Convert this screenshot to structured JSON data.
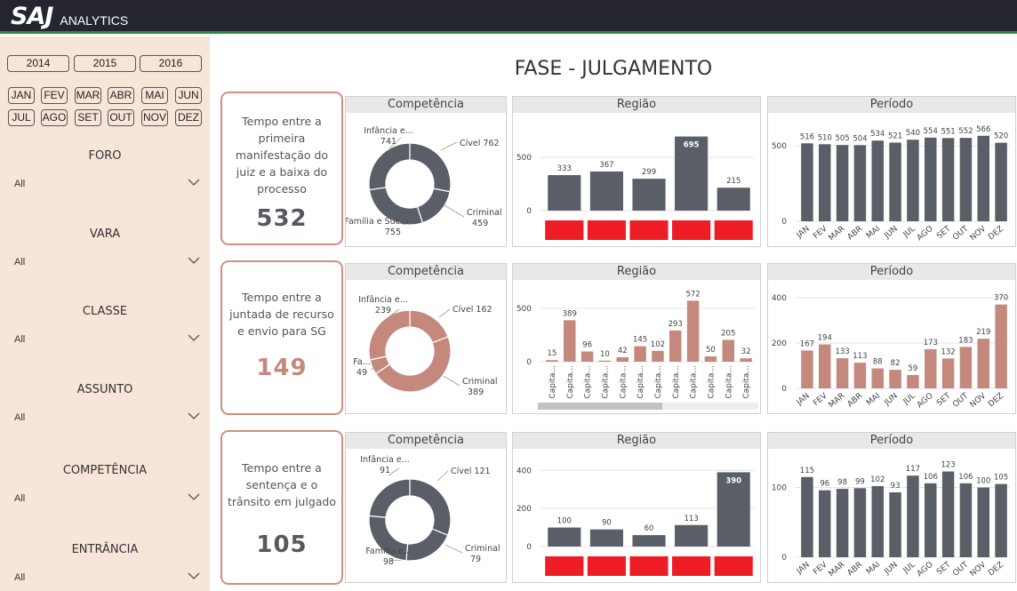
{
  "brand": {
    "logo": "SAJ",
    "subtitle": "ANALYTICS"
  },
  "sidebar": {
    "years": [
      "2014",
      "2015",
      "2016"
    ],
    "months": [
      "JAN",
      "FEV",
      "MAR",
      "ABR",
      "MAI",
      "JUN",
      "JUL",
      "AGO",
      "SET",
      "OUT",
      "NOV",
      "DEZ"
    ],
    "filters": [
      {
        "label": "FORO",
        "value": "All"
      },
      {
        "label": "VARA",
        "value": "All"
      },
      {
        "label": "CLASSE",
        "value": "All"
      },
      {
        "label": "ASSUNTO",
        "value": "All"
      },
      {
        "label": "COMPETÊNCIA",
        "value": "All"
      },
      {
        "label": "ENTRÂNCIA",
        "value": "All"
      }
    ]
  },
  "title": "FASE - JULGAMENTO",
  "rows": [
    {
      "kpi_text": "Tempo entre a primeira manifestação do juiz e a baixa do processo",
      "kpi_value": "532",
      "kpi_color": "#555a60",
      "color": "#5a5e66"
    },
    {
      "kpi_text": "Tempo entre a juntada de recurso e envio para SG",
      "kpi_value": "149",
      "kpi_color": "#c4897c",
      "color": "#c4897c"
    },
    {
      "kpi_text": "Tempo entre a sentença e o trânsito em julgado",
      "kpi_value": "105",
      "kpi_color": "#555a60",
      "color": "#5a5e66"
    }
  ],
  "panel_titles": {
    "competencia": "Competência",
    "regiao": "Região",
    "periodo": "Período"
  },
  "chart_data": [
    {
      "id": "comp-1",
      "type": "pie",
      "title": "Competência",
      "donut": true,
      "slices": [
        {
          "label": "Cível 762",
          "value": 762
        },
        {
          "label": "Criminal 459",
          "value": 459
        },
        {
          "label": "Família e Suc... 755",
          "value": 755
        },
        {
          "label": "Infância e... 741",
          "value": 741
        }
      ]
    },
    {
      "id": "reg-1",
      "type": "bar",
      "title": "Região",
      "values": [
        333,
        367,
        299,
        695,
        215
      ],
      "ylim": [
        0,
        750
      ],
      "yticks": [
        0,
        500
      ],
      "value_labels": [
        "333",
        "367",
        "299",
        "695",
        "215"
      ],
      "category_labels": [],
      "highlight_last_max": true,
      "red_blocks": true
    },
    {
      "id": "per-1",
      "type": "bar",
      "title": "Período",
      "categories": [
        "JAN",
        "FEV",
        "MAR",
        "ABR",
        "MAI",
        "JUN",
        "JUL",
        "AGO",
        "SET",
        "OUT",
        "NOV",
        "DEZ"
      ],
      "values": [
        516,
        510,
        505,
        504,
        534,
        521,
        540,
        554,
        551,
        552,
        566,
        520
      ],
      "ylim": [
        0,
        600
      ],
      "yticks": [
        0,
        500
      ],
      "value_labels": [
        "516",
        "510",
        "505",
        "504",
        "534",
        "521",
        "540",
        "554",
        "551",
        "552",
        "566",
        "520"
      ]
    },
    {
      "id": "comp-2",
      "type": "pie",
      "title": "Competência",
      "donut": true,
      "slices": [
        {
          "label": "Cível 162",
          "value": 162
        },
        {
          "label": "Criminal 389",
          "value": 389
        },
        {
          "label": "Fa... 49",
          "value": 49
        },
        {
          "label": "Infância e... 239",
          "value": 239
        }
      ]
    },
    {
      "id": "reg-2",
      "type": "bar",
      "title": "Região",
      "values": [
        15,
        389,
        96,
        10,
        42,
        145,
        102,
        293,
        572,
        50,
        205,
        32
      ],
      "ylim": [
        0,
        600
      ],
      "yticks": [
        0,
        500
      ],
      "value_labels": [
        "15",
        "389",
        "96",
        "10",
        "42",
        "145",
        "102",
        "293",
        "572",
        "50",
        "205",
        "32"
      ],
      "category_labels": [
        "Capita...",
        "Capita...",
        "Capita...",
        "Capita...",
        "Capita...",
        "Capita...",
        "Capita...",
        "Capita...",
        "Capita...",
        "Capita...",
        "Capita...",
        "Capita..."
      ],
      "scrollbar": true
    },
    {
      "id": "per-2",
      "type": "bar",
      "title": "Período",
      "categories": [
        "JAN",
        "FEV",
        "MAR",
        "ABR",
        "MAI",
        "JUN",
        "JUL",
        "AGO",
        "SET",
        "OUT",
        "NOV",
        "DEZ"
      ],
      "values": [
        167,
        194,
        133,
        113,
        88,
        82,
        59,
        173,
        132,
        183,
        219,
        370
      ],
      "ylim": [
        0,
        400
      ],
      "yticks": [
        0,
        200,
        400
      ],
      "value_labels": [
        "167",
        "194",
        "133",
        "113",
        "88",
        "82",
        "59",
        "173",
        "132",
        "183",
        "219",
        "370"
      ]
    },
    {
      "id": "comp-3",
      "type": "pie",
      "title": "Competência",
      "donut": true,
      "slices": [
        {
          "label": "Cível 121",
          "value": 121
        },
        {
          "label": "Criminal 79",
          "value": 79
        },
        {
          "label": "Família e... 98",
          "value": 98
        },
        {
          "label": "Infância e... 91",
          "value": 91
        }
      ]
    },
    {
      "id": "reg-3",
      "type": "bar",
      "title": "Região",
      "values": [
        100,
        90,
        60,
        113,
        390
      ],
      "ylim": [
        0,
        420
      ],
      "yticks": [
        0,
        200,
        400
      ],
      "value_labels": [
        "100",
        "90",
        "60",
        "113",
        "390"
      ],
      "category_labels": [],
      "highlight_last_max": true,
      "red_blocks": true
    },
    {
      "id": "per-3",
      "type": "bar",
      "title": "Período",
      "categories": [
        "JAN",
        "FEV",
        "MAR",
        "ABR",
        "MAI",
        "JUN",
        "JUL",
        "AGO",
        "SET",
        "OUT",
        "NOV",
        "DEZ"
      ],
      "values": [
        115,
        96,
        98,
        99,
        102,
        93,
        117,
        106,
        123,
        106,
        100,
        105
      ],
      "ylim": [
        0,
        130
      ],
      "yticks": [
        0,
        100
      ],
      "value_labels": [
        "115",
        "96",
        "98",
        "99",
        "102",
        "93",
        "117",
        "106",
        "123",
        "106",
        "100",
        "105"
      ]
    }
  ],
  "colors": {
    "dark": "#5a5e66",
    "rose": "#c4897c",
    "red": "#ee1c25",
    "kpi_border": "#d28f7a",
    "sidebar_bg": "#f8e5d9",
    "topbar": "#252530",
    "accent_line": "#2e8b3a"
  }
}
